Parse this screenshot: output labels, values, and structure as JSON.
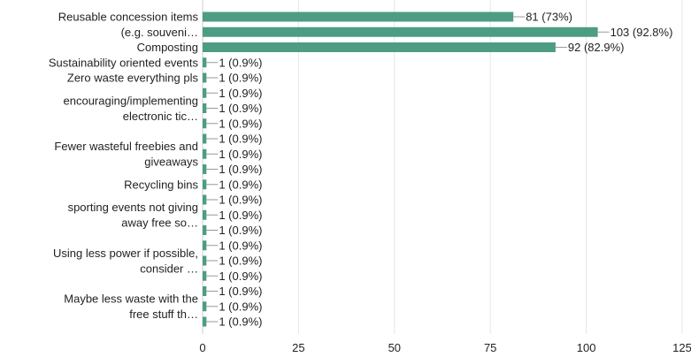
{
  "chart_data": {
    "type": "bar",
    "orientation": "horizontal",
    "color": "#4d9c84",
    "x_ticks": [
      "0",
      "25",
      "50",
      "75",
      "100",
      "125"
    ],
    "xlim": [
      0,
      125
    ],
    "grid": true,
    "category_labels": [
      {
        "lines": [
          "Reusable concession items",
          "(e.g. souveni…"
        ],
        "bars": [
          0,
          1
        ]
      },
      {
        "lines": [
          "Composting"
        ],
        "bars": [
          2
        ]
      },
      {
        "lines": [
          "Sustainability oriented events"
        ],
        "bars": [
          3
        ]
      },
      {
        "lines": [
          "Zero waste everything pls"
        ],
        "bars": [
          4
        ]
      },
      {
        "lines": [
          "encouraging/implementing",
          "electronic tic…"
        ],
        "bars": [
          5,
          6,
          7
        ]
      },
      {
        "lines": [
          "Fewer wasteful freebies and",
          "giveaways"
        ],
        "bars": [
          8,
          9,
          10
        ]
      },
      {
        "lines": [
          "Recycling bins"
        ],
        "bars": [
          11
        ]
      },
      {
        "lines": [
          "sporting events not giving",
          "away free so…"
        ],
        "bars": [
          12,
          13,
          14
        ]
      },
      {
        "lines": [
          "Using less power if possible,",
          "consider …"
        ],
        "bars": [
          15,
          16,
          17
        ]
      },
      {
        "lines": [
          "Maybe less waste with the",
          "free stuff th…"
        ],
        "bars": [
          18,
          19,
          20
        ]
      }
    ],
    "bars": [
      {
        "value": 81,
        "label": "81 (73%)"
      },
      {
        "value": 103,
        "label": "103 (92.8%)"
      },
      {
        "value": 92,
        "label": "92 (82.9%)"
      },
      {
        "value": 1,
        "label": "1 (0.9%)"
      },
      {
        "value": 1,
        "label": "1 (0.9%)"
      },
      {
        "value": 1,
        "label": "1 (0.9%)"
      },
      {
        "value": 1,
        "label": "1 (0.9%)"
      },
      {
        "value": 1,
        "label": "1 (0.9%)"
      },
      {
        "value": 1,
        "label": "1 (0.9%)"
      },
      {
        "value": 1,
        "label": "1 (0.9%)"
      },
      {
        "value": 1,
        "label": "1 (0.9%)"
      },
      {
        "value": 1,
        "label": "1 (0.9%)"
      },
      {
        "value": 1,
        "label": "1 (0.9%)"
      },
      {
        "value": 1,
        "label": "1 (0.9%)"
      },
      {
        "value": 1,
        "label": "1 (0.9%)"
      },
      {
        "value": 1,
        "label": "1 (0.9%)"
      },
      {
        "value": 1,
        "label": "1 (0.9%)"
      },
      {
        "value": 1,
        "label": "1 (0.9%)"
      },
      {
        "value": 1,
        "label": "1 (0.9%)"
      },
      {
        "value": 1,
        "label": "1 (0.9%)"
      },
      {
        "value": 1,
        "label": "1 (0.9%)"
      }
    ]
  }
}
